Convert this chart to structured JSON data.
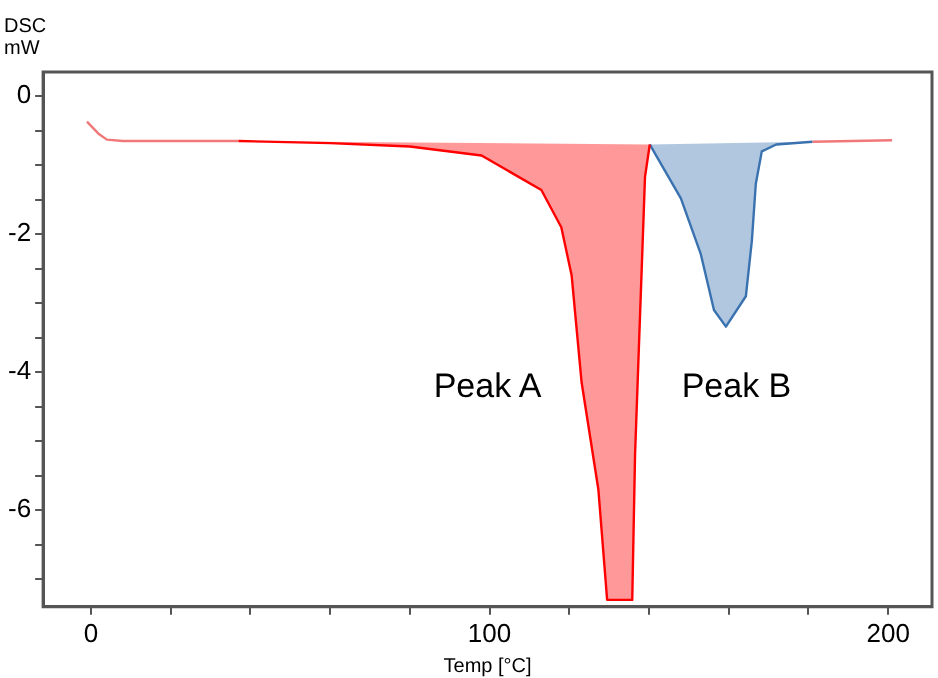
{
  "chart_data": {
    "type": "line",
    "xlabel": "Temp [°C]",
    "ylabel": "DSC mW",
    "xlim": [
      -12,
      211
    ],
    "ylim": [
      -7.4,
      0.35
    ],
    "xticks": [
      0,
      {
        "value": 20,
        "label": null
      },
      {
        "value": 40,
        "label": null
      },
      {
        "value": 60,
        "label": null
      },
      {
        "value": 80,
        "label": null
      },
      100,
      {
        "value": 120,
        "label": null
      },
      {
        "value": 140,
        "label": null
      },
      {
        "value": 160,
        "label": null
      },
      {
        "value": 180,
        "label": null
      },
      200
    ],
    "yticks": [
      0,
      {
        "value": -0.5,
        "label": null
      },
      {
        "value": -1,
        "label": null
      },
      {
        "value": -1.5,
        "label": null
      },
      -2,
      {
        "value": -2.5,
        "label": null
      },
      {
        "value": -3,
        "label": null
      },
      {
        "value": -3.5,
        "label": null
      },
      -4,
      {
        "value": -4.5,
        "label": null
      },
      {
        "value": -5,
        "label": null
      },
      {
        "value": -5.5,
        "label": null
      },
      -6,
      {
        "value": -6.5,
        "label": null
      },
      {
        "value": -7,
        "label": null
      }
    ],
    "grid": false,
    "legend": false,
    "marker": "none",
    "line_style": "solid",
    "annotations": [
      "Peak A",
      "Peak B"
    ],
    "series": [
      {
        "type": "line",
        "color": "#f07878",
        "x": [
          -1,
          2,
          4,
          8,
          37,
          110,
          181,
          201
        ],
        "values": [
          -0.37,
          -0.55,
          -0.63,
          -0.65,
          -0.65,
          null,
          -0.66,
          -0.64
        ]
      },
      {
        "type": "area",
        "color": "#ff0000",
        "x": [
          37,
          60,
          80,
          98,
          113,
          118,
          120.6,
          123.1,
          127.3,
          129.5,
          135.8,
          136.5,
          137.8,
          139,
          140.2
        ],
        "values": [
          -0.65,
          -0.68,
          -0.73,
          -0.86,
          -1.36,
          -1.9,
          -2.6,
          -4.15,
          -5.7,
          -7.3,
          -7.3,
          -5.2,
          -3.1,
          -1.17,
          -0.7
        ]
      },
      {
        "type": "area",
        "color": "#3a72b0",
        "x": [
          140.2,
          141.7,
          148,
          153,
          156.3,
          159.3,
          164.3,
          165.8,
          166.8,
          168.3,
          171.9,
          181
        ],
        "values": [
          -0.7,
          -0.85,
          -1.48,
          -2.29,
          -3.1,
          -3.34,
          -2.9,
          -2.1,
          -1.27,
          -0.8,
          -0.7,
          -0.66
        ]
      }
    ]
  }
}
